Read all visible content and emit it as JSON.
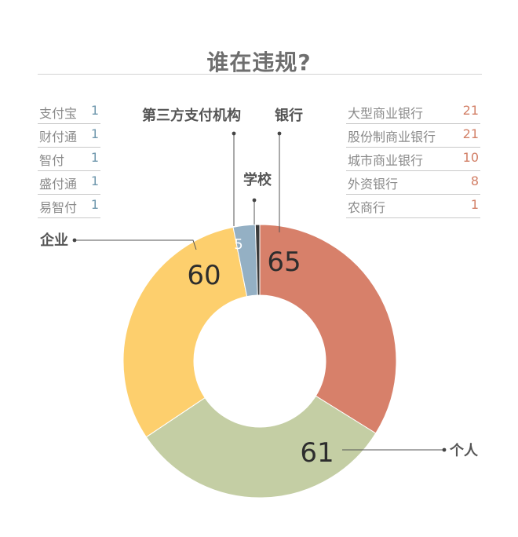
{
  "title": "谁在违规?",
  "left_legend": {
    "items": [
      {
        "label": "支付宝",
        "value": "1"
      },
      {
        "label": "财付通",
        "value": "1"
      },
      {
        "label": "智付",
        "value": "1"
      },
      {
        "label": "盛付通",
        "value": "1"
      },
      {
        "label": "易智付",
        "value": "1"
      }
    ]
  },
  "right_legend": {
    "items": [
      {
        "label": "大型商业银行",
        "value": "21"
      },
      {
        "label": "股份制商业银行",
        "value": "21"
      },
      {
        "label": "城市商业银行",
        "value": "10"
      },
      {
        "label": "外资银行",
        "value": "8"
      },
      {
        "label": "农商行",
        "value": "1"
      }
    ]
  },
  "colors": {
    "bank": "#d7806a",
    "individual": "#c4cea4",
    "enterprise": "#fdcf6d",
    "third_party": "#94b0c4",
    "school": "#3b3b3b",
    "left_values": "#6f97ad",
    "right_values": "#d27f66"
  },
  "chart_data": {
    "type": "pie",
    "donut": true,
    "title": "谁在违规?",
    "slices": [
      {
        "label": "银行",
        "value": 65
      },
      {
        "label": "个人",
        "value": 61
      },
      {
        "label": "企业",
        "value": 60
      },
      {
        "label": "第三方支付机构",
        "value": 5
      },
      {
        "label": "学校",
        "value": 1
      }
    ]
  }
}
